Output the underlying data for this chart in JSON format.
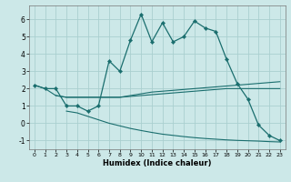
{
  "xlabel": "Humidex (Indice chaleur)",
  "background_color": "#cce8e8",
  "grid_color": "#aacfcf",
  "line_color": "#1a6e6e",
  "xlim": [
    -0.5,
    23.5
  ],
  "ylim": [
    -1.5,
    6.8
  ],
  "xticks": [
    0,
    1,
    2,
    3,
    4,
    5,
    6,
    7,
    8,
    9,
    10,
    11,
    12,
    13,
    14,
    15,
    16,
    17,
    18,
    19,
    20,
    21,
    22,
    23
  ],
  "yticks": [
    -1,
    0,
    1,
    2,
    3,
    4,
    5,
    6
  ],
  "curve_main_x": [
    0,
    1,
    2,
    3,
    4,
    5,
    6,
    7,
    8,
    9,
    10,
    11,
    12,
    13,
    14,
    15,
    16,
    17,
    18,
    19,
    20,
    21,
    22,
    23
  ],
  "curve_main_y": [
    2.2,
    2.0,
    2.0,
    1.0,
    1.0,
    0.7,
    1.0,
    3.6,
    3.0,
    4.8,
    6.3,
    4.7,
    5.8,
    4.7,
    5.0,
    5.9,
    5.5,
    5.3,
    3.7,
    2.3,
    1.4,
    -0.1,
    -0.7,
    -1.0
  ],
  "line2_x": [
    0,
    1,
    2,
    3,
    4,
    5,
    6,
    7,
    8,
    9,
    10,
    11,
    12,
    13,
    14,
    15,
    16,
    17,
    18,
    19,
    20,
    21,
    22,
    23
  ],
  "line2_y": [
    2.2,
    2.0,
    1.6,
    1.5,
    1.5,
    1.5,
    1.5,
    1.5,
    1.5,
    1.6,
    1.7,
    1.8,
    1.85,
    1.9,
    1.95,
    2.0,
    2.05,
    2.1,
    2.15,
    2.2,
    2.25,
    2.3,
    2.35,
    2.4
  ],
  "line3_x": [
    2,
    3,
    4,
    5,
    6,
    7,
    8,
    9,
    10,
    11,
    12,
    13,
    14,
    15,
    16,
    17,
    18,
    19,
    20,
    21,
    22,
    23
  ],
  "line3_y": [
    1.6,
    1.5,
    1.5,
    1.5,
    1.5,
    1.5,
    1.5,
    1.55,
    1.6,
    1.65,
    1.7,
    1.75,
    1.8,
    1.85,
    1.9,
    1.95,
    2.0,
    2.0,
    2.0,
    2.0,
    2.0,
    2.0
  ],
  "line4_x": [
    3,
    4,
    5,
    6,
    7,
    8,
    9,
    10,
    11,
    12,
    13,
    14,
    15,
    16,
    17,
    18,
    19,
    20,
    21,
    22,
    23
  ],
  "line4_y": [
    0.7,
    0.6,
    0.4,
    0.2,
    0.0,
    -0.15,
    -0.3,
    -0.42,
    -0.53,
    -0.63,
    -0.7,
    -0.77,
    -0.83,
    -0.88,
    -0.92,
    -0.96,
    -0.99,
    -1.01,
    -1.03,
    -1.06,
    -1.08
  ]
}
